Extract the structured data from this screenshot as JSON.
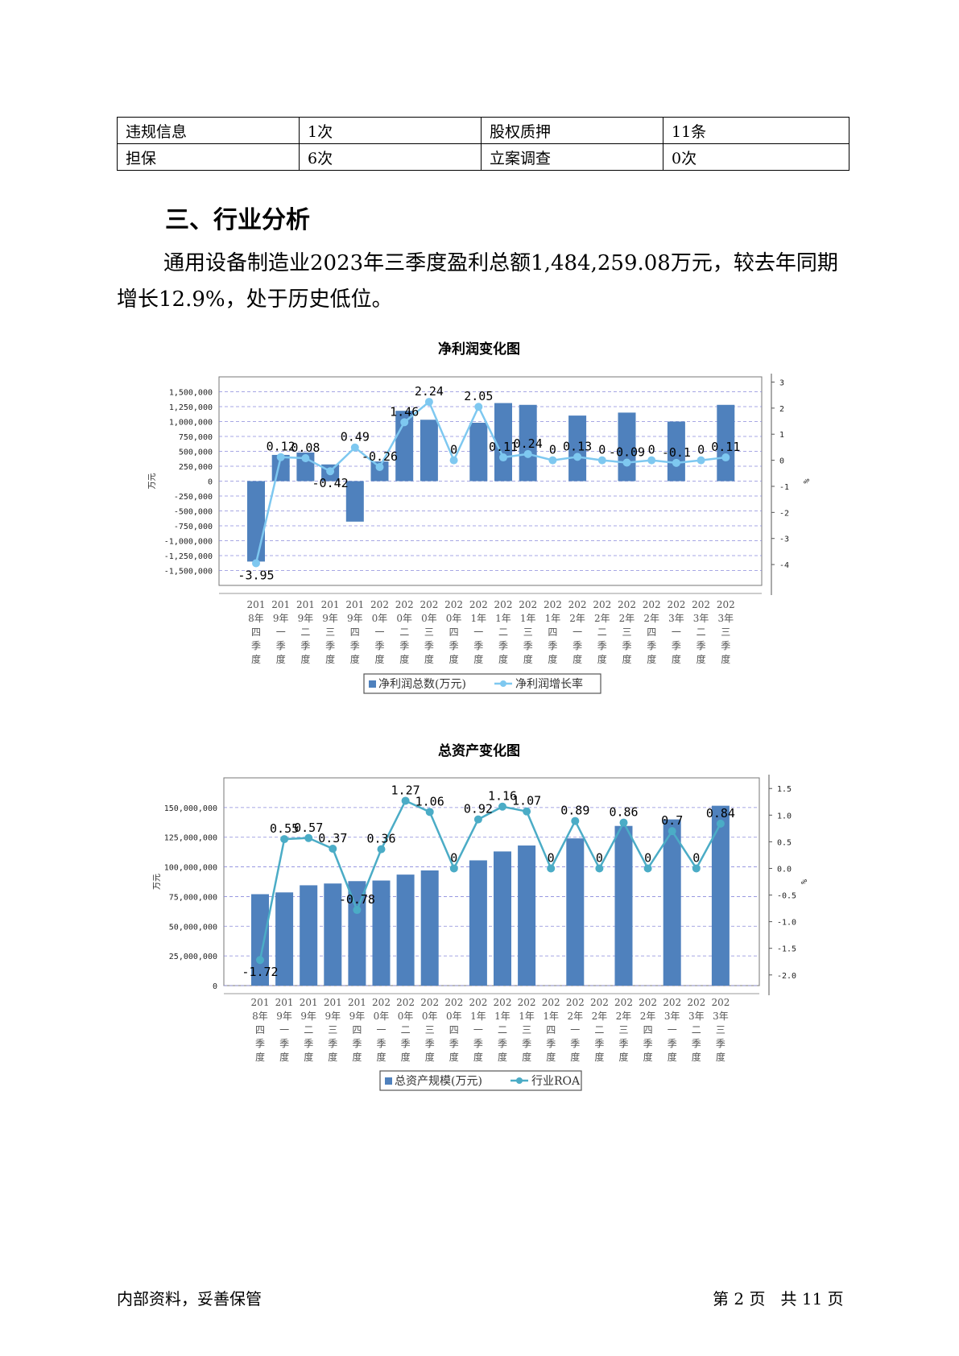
{
  "table": {
    "rows": [
      [
        "违规信息",
        "1次",
        "股权质押",
        "11条"
      ],
      [
        "担保",
        "6次",
        "立案调查",
        "0次"
      ]
    ]
  },
  "section_title": "三、行业分析",
  "paragraph": "通用设备制造业2023年三季度盈利总额1,484,259.08万元，较去年同期增长12.9%，处于历史低位。",
  "chart_data": [
    {
      "type": "bar",
      "title": "净利润变化图",
      "categories": [
        "2018年四季度",
        "2019年一季度",
        "2019年二季度",
        "2019年三季度",
        "2019年四季度",
        "2020年一季度",
        "2020年二季度",
        "2020年三季度",
        "2020年四季度",
        "2021年一季度",
        "2021年二季度",
        "2021年三季度",
        "2021年四季度",
        "2022年一季度",
        "2022年二季度",
        "2022年三季度",
        "2022年四季度",
        "2023年一季度",
        "2023年二季度",
        "2023年三季度"
      ],
      "x_lines": [
        [
          "201",
          "8年",
          "四",
          "季",
          "度"
        ],
        [
          "201",
          "9年",
          "一",
          "季",
          "度"
        ],
        [
          "201",
          "9年",
          "二",
          "季",
          "度"
        ],
        [
          "201",
          "9年",
          "三",
          "季",
          "度"
        ],
        [
          "201",
          "9年",
          "四",
          "季",
          "度"
        ],
        [
          "202",
          "0年",
          "一",
          "季",
          "度"
        ],
        [
          "202",
          "0年",
          "二",
          "季",
          "度"
        ],
        [
          "202",
          "0年",
          "三",
          "季",
          "度"
        ],
        [
          "202",
          "0年",
          "四",
          "季",
          "度"
        ],
        [
          "202",
          "1年",
          "一",
          "季",
          "度"
        ],
        [
          "202",
          "1年",
          "二",
          "季",
          "度"
        ],
        [
          "202",
          "1年",
          "三",
          "季",
          "度"
        ],
        [
          "202",
          "1年",
          "四",
          "季",
          "度"
        ],
        [
          "202",
          "2年",
          "一",
          "季",
          "度"
        ],
        [
          "202",
          "2年",
          "二",
          "季",
          "度"
        ],
        [
          "202",
          "2年",
          "三",
          "季",
          "度"
        ],
        [
          "202",
          "2年",
          "四",
          "季",
          "度"
        ],
        [
          "202",
          "3年",
          "一",
          "季",
          "度"
        ],
        [
          "202",
          "3年",
          "二",
          "季",
          "度"
        ],
        [
          "202",
          "3年",
          "三",
          "季",
          "度"
        ]
      ],
      "series": [
        {
          "name": "净利润总数(万元)",
          "kind": "bar",
          "color": "#4f81bd",
          "values": [
            -1350000,
            440000,
            480000,
            280000,
            -680000,
            330000,
            1180000,
            1030000,
            null,
            980000,
            1310000,
            1280000,
            null,
            1100000,
            null,
            1150000,
            null,
            1000000,
            null,
            1280000
          ]
        },
        {
          "name": "净利润增长率",
          "kind": "line",
          "axis": "right",
          "color": "#7ec8f0",
          "values": [
            -3.95,
            0.12,
            0.08,
            -0.42,
            0.49,
            -0.26,
            1.46,
            2.24,
            0,
            2.05,
            0.11,
            0.24,
            0,
            0.13,
            0,
            -0.09,
            0,
            -0.1,
            0,
            0.11
          ],
          "labels": [
            "-3.95",
            "0.12",
            "0.08",
            "-0.42",
            "0.49",
            "-0.26",
            "1.46",
            "2.24",
            "0",
            "2.05",
            "0.11",
            "0.24",
            "0",
            "0.13",
            "0",
            "-0.09",
            "0",
            "-0.1",
            "0",
            "0.11"
          ]
        }
      ],
      "ylim": [
        -1750000,
        1750000
      ],
      "y2lim": [
        -4.8,
        3.2
      ],
      "yticks": [
        -1500000,
        -1250000,
        -1000000,
        -750000,
        -500000,
        -250000,
        0,
        250000,
        500000,
        750000,
        1000000,
        1250000,
        1500000
      ],
      "ytick_labels": [
        "-1,500,000",
        "-1,250,000",
        "-1,000,000",
        "-750,000",
        "-500,000",
        "-250,000",
        "0",
        "250,000",
        "500,000",
        "750,000",
        "1,000,000",
        "1,250,000",
        "1,500,000"
      ],
      "y2ticks": [
        -4,
        -3,
        -2,
        -1,
        0,
        1,
        2,
        3
      ],
      "y2tick_labels": [
        "-4",
        "-3",
        "-2",
        "-1",
        "0",
        "1",
        "2",
        "3"
      ],
      "ylabel": "万元",
      "y2label": "%",
      "grid": true,
      "legend": "bottom"
    },
    {
      "type": "bar",
      "title": "总资产变化图",
      "categories": [
        "2018年四季度",
        "2019年一季度",
        "2019年二季度",
        "2019年三季度",
        "2019年四季度",
        "2020年一季度",
        "2020年二季度",
        "2020年三季度",
        "2020年四季度",
        "2021年一季度",
        "2021年二季度",
        "2021年三季度",
        "2021年四季度",
        "2022年一季度",
        "2022年二季度",
        "2022年三季度",
        "2022年四季度",
        "2023年一季度",
        "2023年二季度",
        "2023年三季度"
      ],
      "x_lines": [
        [
          "201",
          "8年",
          "四",
          "季",
          "度"
        ],
        [
          "201",
          "9年",
          "一",
          "季",
          "度"
        ],
        [
          "201",
          "9年",
          "二",
          "季",
          "度"
        ],
        [
          "201",
          "9年",
          "三",
          "季",
          "度"
        ],
        [
          "201",
          "9年",
          "四",
          "季",
          "度"
        ],
        [
          "202",
          "0年",
          "一",
          "季",
          "度"
        ],
        [
          "202",
          "0年",
          "二",
          "季",
          "度"
        ],
        [
          "202",
          "0年",
          "三",
          "季",
          "度"
        ],
        [
          "202",
          "0年",
          "四",
          "季",
          "度"
        ],
        [
          "202",
          "1年",
          "一",
          "季",
          "度"
        ],
        [
          "202",
          "1年",
          "二",
          "季",
          "度"
        ],
        [
          "202",
          "1年",
          "三",
          "季",
          "度"
        ],
        [
          "202",
          "1年",
          "四",
          "季",
          "度"
        ],
        [
          "202",
          "2年",
          "一",
          "季",
          "度"
        ],
        [
          "202",
          "2年",
          "二",
          "季",
          "度"
        ],
        [
          "202",
          "2年",
          "三",
          "季",
          "度"
        ],
        [
          "202",
          "2年",
          "四",
          "季",
          "度"
        ],
        [
          "202",
          "3年",
          "一",
          "季",
          "度"
        ],
        [
          "202",
          "3年",
          "二",
          "季",
          "度"
        ],
        [
          "202",
          "3年",
          "三",
          "季",
          "度"
        ]
      ],
      "series": [
        {
          "name": "总资产规模(万元)",
          "kind": "bar",
          "color": "#4f81bd",
          "values": [
            77000000,
            78500000,
            84500000,
            86000000,
            88000000,
            88500000,
            93500000,
            97000000,
            null,
            105500000,
            113000000,
            118000000,
            null,
            124000000,
            null,
            134500000,
            null,
            140000000,
            null,
            151500000
          ]
        },
        {
          "name": "行业ROA",
          "kind": "line",
          "axis": "right",
          "color": "#4bacc6",
          "values": [
            -1.72,
            0.55,
            0.57,
            0.37,
            -0.78,
            0.36,
            1.27,
            1.06,
            0,
            0.92,
            1.16,
            1.07,
            0,
            0.89,
            0,
            0.86,
            0,
            0.7,
            0,
            0.84
          ],
          "labels": [
            "-1.72",
            "0.55",
            "0.57",
            "0.37",
            "-0.78",
            "0.36",
            "1.27",
            "1.06",
            "0",
            "0.92",
            "1.16",
            "1.07",
            "0",
            "0.89",
            "0",
            "0.86",
            "0",
            "0.7",
            "0",
            "0.84"
          ]
        }
      ],
      "ylim": [
        0,
        175000000
      ],
      "y2lim": [
        -2.2,
        1.7
      ],
      "yticks": [
        0,
        25000000,
        50000000,
        75000000,
        100000000,
        125000000,
        150000000
      ],
      "ytick_labels": [
        "0",
        "25,000,000",
        "50,000,000",
        "75,000,000",
        "100,000,000",
        "125,000,000",
        "150,000,000"
      ],
      "y2ticks": [
        -2,
        -1.5,
        -1,
        -0.5,
        0,
        0.5,
        1,
        1.5
      ],
      "y2tick_labels": [
        "-2.0",
        "-1.5",
        "-1.0",
        "-0.5",
        "0.0",
        "0.5",
        "1.0",
        "1.5"
      ],
      "ylabel": "万元",
      "y2label": "%",
      "grid": true,
      "legend": "bottom"
    }
  ],
  "footer": {
    "left": "内部资料，妥善保管",
    "right": "第 2 页   共 11 页"
  }
}
